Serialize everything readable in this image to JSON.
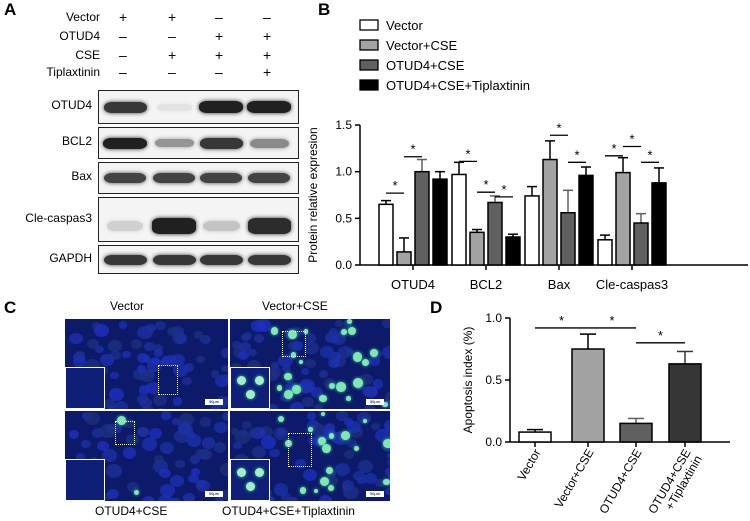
{
  "panels": {
    "A": "A",
    "B": "B",
    "C": "C",
    "D": "D"
  },
  "panelA": {
    "conditions": [
      {
        "label": "Vector",
        "marks": [
          "+",
          "+",
          "–",
          "–"
        ]
      },
      {
        "label": "OTUD4",
        "marks": [
          "–",
          "–",
          "+",
          "+"
        ]
      },
      {
        "label": "CSE",
        "marks": [
          "–",
          "+",
          "+",
          "+"
        ]
      },
      {
        "label": "Tiplaxtinin",
        "marks": [
          "–",
          "–",
          "–",
          "+"
        ]
      }
    ],
    "blots": [
      {
        "label": "OTUD4",
        "intensities": [
          0.85,
          0.12,
          0.95,
          0.95
        ]
      },
      {
        "label": "BCL2",
        "intensities": [
          0.95,
          0.45,
          0.85,
          0.5
        ]
      },
      {
        "label": "Bax",
        "intensities": [
          0.8,
          0.8,
          0.8,
          0.8
        ]
      },
      {
        "label": "Cle-caspas3",
        "intensities": [
          0.2,
          0.95,
          0.25,
          0.9
        ]
      },
      {
        "label": "GAPDH",
        "intensities": [
          0.85,
          0.85,
          0.85,
          0.85
        ]
      }
    ]
  },
  "chart_data": [
    {
      "type": "bar",
      "panel": "B",
      "ylabel": "Protein relative expresion",
      "ylim": [
        0,
        1.5
      ],
      "yticks": [
        "0.0",
        "0.5",
        "1.0",
        "1.5"
      ],
      "categories": [
        "OTUD4",
        "BCL2",
        "Bax",
        "Cle-caspas3"
      ],
      "series": [
        {
          "name": "Vector",
          "color": "#ffffff",
          "values": [
            0.65,
            0.97,
            0.74,
            0.27
          ],
          "errors": [
            0.04,
            0.13,
            0.1,
            0.05
          ]
        },
        {
          "name": "Vector+CSE",
          "color": "#a3a3a3",
          "values": [
            0.14,
            0.35,
            1.13,
            0.99
          ],
          "errors": [
            0.15,
            0.03,
            0.2,
            0.16
          ]
        },
        {
          "name": "OTUD4+CSE",
          "color": "#606060",
          "values": [
            1.0,
            0.67,
            0.56,
            0.45
          ],
          "errors": [
            0.13,
            0.07,
            0.24,
            0.1
          ]
        },
        {
          "name": "OTUD4+CSE+Tiplaxtinin",
          "color": "#000000",
          "values": [
            0.92,
            0.3,
            0.96,
            0.88
          ],
          "errors": [
            0.08,
            0.03,
            0.09,
            0.16
          ]
        }
      ],
      "significance": "*"
    },
    {
      "type": "bar",
      "panel": "D",
      "ylabel": "Apoptosis index (%)",
      "ylim": [
        0,
        1.0
      ],
      "yticks": [
        "0.0",
        "0.5",
        "1.0"
      ],
      "categories": [
        "Vector",
        "Vector+CSE",
        "OTUD4+CSE",
        "OTUD4+CSE\n+Tiplaxtinin"
      ],
      "colors": [
        "#ffffff",
        "#a3a3a3",
        "#606060",
        "#363636"
      ],
      "values": [
        0.08,
        0.75,
        0.15,
        0.63
      ],
      "errors": [
        0.02,
        0.12,
        0.04,
        0.1
      ],
      "significance": "*"
    }
  ],
  "panelC": {
    "titles": [
      "Vector",
      "Vector+CSE",
      "OTUD4+CSE",
      "OTUD4+CSE+Tiplaxtinin"
    ],
    "scalebar_label": "50μm"
  }
}
